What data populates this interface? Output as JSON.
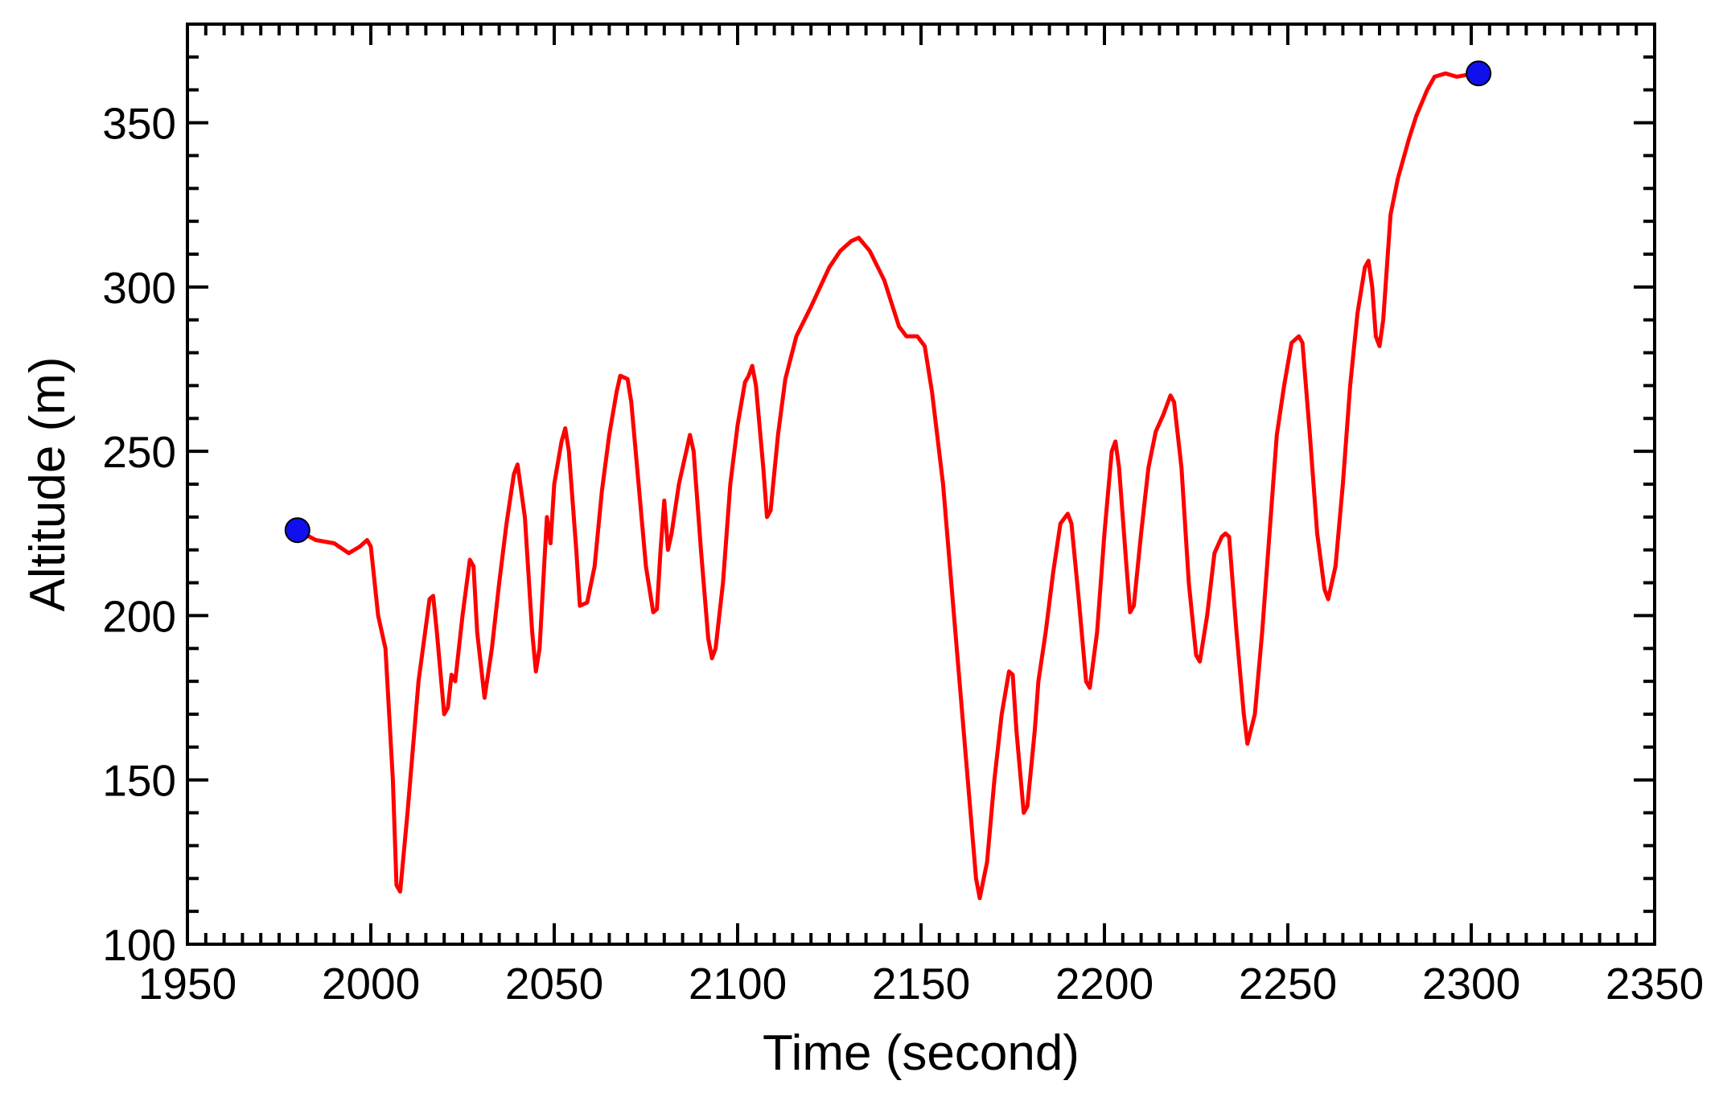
{
  "chart_data": {
    "type": "line",
    "xlabel": "Time (second)",
    "ylabel": "Altitude (m)",
    "xlim": [
      1950,
      2350
    ],
    "ylim": [
      100,
      380
    ],
    "xticks": [
      1950,
      2000,
      2050,
      2100,
      2150,
      2200,
      2250,
      2300,
      2350
    ],
    "yticks": [
      100,
      150,
      200,
      250,
      300,
      350
    ],
    "xminor": 10,
    "yminor": 5,
    "series": [
      {
        "color": "#ff0000",
        "x": [
          1980,
          1985,
          1990,
          1994,
          1997,
          1999,
          2000,
          2002,
          2004,
          2006,
          2007,
          2008,
          2010,
          2013,
          2016,
          2017,
          2018,
          2020,
          2021,
          2022,
          2023,
          2025,
          2027,
          2028,
          2029,
          2031,
          2033,
          2035,
          2037,
          2039,
          2040,
          2042,
          2044,
          2045,
          2046,
          2047,
          2048,
          2049,
          2050,
          2052,
          2053,
          2054,
          2056,
          2057,
          2059,
          2061,
          2063,
          2065,
          2067,
          2068,
          2070,
          2071,
          2073,
          2075,
          2077,
          2078,
          2079,
          2080,
          2081,
          2082,
          2084,
          2086,
          2087,
          2088,
          2090,
          2092,
          2093,
          2094,
          2096,
          2098,
          2100,
          2102,
          2103,
          2104,
          2105,
          2107,
          2108,
          2109,
          2111,
          2113,
          2116,
          2120,
          2125,
          2128,
          2131,
          2133,
          2136,
          2140,
          2144,
          2146,
          2149,
          2151,
          2153,
          2156,
          2159,
          2162,
          2165,
          2166,
          2168,
          2170,
          2172,
          2174,
          2175,
          2176,
          2178,
          2179,
          2181,
          2182,
          2184,
          2186,
          2188,
          2190,
          2191,
          2193,
          2195,
          2196,
          2198,
          2200,
          2202,
          2203,
          2204,
          2206,
          2207,
          2208,
          2210,
          2212,
          2214,
          2216,
          2218,
          2219,
          2221,
          2223,
          2225,
          2226,
          2228,
          2230,
          2232,
          2233,
          2234,
          2236,
          2238,
          2239,
          2241,
          2243,
          2245,
          2247,
          2249,
          2251,
          2253,
          2254,
          2256,
          2258,
          2260,
          2261,
          2263,
          2265,
          2267,
          2269,
          2271,
          2272,
          2273,
          2274,
          2275,
          2276,
          2278,
          2280,
          2283,
          2285,
          2288,
          2290,
          2293,
          2296,
          2301
        ],
        "values": [
          226,
          223,
          222,
          219,
          221,
          223,
          221,
          200,
          190,
          150,
          118,
          116,
          140,
          180,
          205,
          206,
          195,
          170,
          172,
          182,
          180,
          200,
          217,
          215,
          195,
          175,
          190,
          210,
          228,
          243,
          246,
          230,
          195,
          183,
          190,
          210,
          230,
          222,
          240,
          253,
          257,
          250,
          220,
          203,
          204,
          215,
          238,
          255,
          268,
          273,
          272,
          265,
          240,
          215,
          201,
          202,
          220,
          235,
          220,
          225,
          240,
          250,
          255,
          250,
          220,
          193,
          187,
          190,
          210,
          240,
          258,
          271,
          273,
          276,
          270,
          245,
          230,
          232,
          255,
          272,
          285,
          294,
          306,
          311,
          314,
          315,
          311,
          302,
          288,
          285,
          285,
          282,
          268,
          240,
          200,
          160,
          120,
          114,
          125,
          150,
          170,
          183,
          182,
          165,
          140,
          142,
          165,
          180,
          195,
          213,
          228,
          231,
          228,
          205,
          180,
          178,
          195,
          225,
          250,
          253,
          245,
          215,
          201,
          203,
          225,
          245,
          256,
          261,
          267,
          265,
          245,
          210,
          188,
          186,
          200,
          219,
          224,
          225,
          224,
          195,
          170,
          161,
          170,
          195,
          225,
          255,
          270,
          283,
          285,
          283,
          255,
          225,
          208,
          205,
          215,
          240,
          270,
          292,
          306,
          308,
          300,
          285,
          282,
          290,
          322,
          333,
          345,
          352,
          360,
          364,
          365,
          364,
          365
        ]
      },
      {
        "color": "#1010ee",
        "marker": "circle",
        "x": [
          1980,
          2302
        ],
        "values": [
          226,
          365
        ]
      }
    ]
  }
}
